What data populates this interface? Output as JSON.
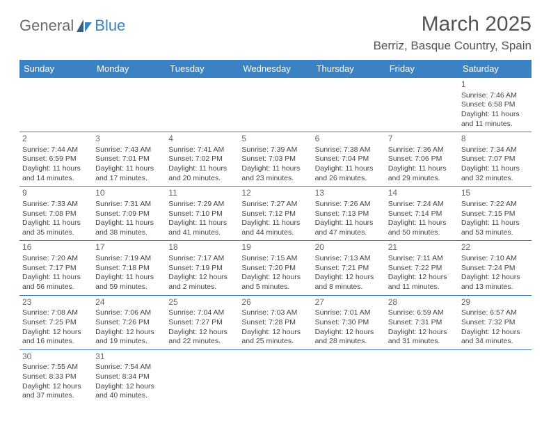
{
  "logo": {
    "part1": "General",
    "part2": "Blue"
  },
  "title": "March 2025",
  "location": "Berriz, Basque Country, Spain",
  "headers": [
    "Sunday",
    "Monday",
    "Tuesday",
    "Wednesday",
    "Thursday",
    "Friday",
    "Saturday"
  ],
  "colors": {
    "header_bg": "#3b82c4",
    "header_text": "#ffffff",
    "border": "#3b82c4",
    "text": "#444444",
    "title_text": "#555555",
    "logo_gray": "#6b6b6b",
    "logo_blue": "#3b82c4"
  },
  "first_weekday": 6,
  "days": [
    {
      "n": 1,
      "sunrise": "7:46 AM",
      "sunset": "6:58 PM",
      "daylight": "11 hours and 11 minutes."
    },
    {
      "n": 2,
      "sunrise": "7:44 AM",
      "sunset": "6:59 PM",
      "daylight": "11 hours and 14 minutes."
    },
    {
      "n": 3,
      "sunrise": "7:43 AM",
      "sunset": "7:01 PM",
      "daylight": "11 hours and 17 minutes."
    },
    {
      "n": 4,
      "sunrise": "7:41 AM",
      "sunset": "7:02 PM",
      "daylight": "11 hours and 20 minutes."
    },
    {
      "n": 5,
      "sunrise": "7:39 AM",
      "sunset": "7:03 PM",
      "daylight": "11 hours and 23 minutes."
    },
    {
      "n": 6,
      "sunrise": "7:38 AM",
      "sunset": "7:04 PM",
      "daylight": "11 hours and 26 minutes."
    },
    {
      "n": 7,
      "sunrise": "7:36 AM",
      "sunset": "7:06 PM",
      "daylight": "11 hours and 29 minutes."
    },
    {
      "n": 8,
      "sunrise": "7:34 AM",
      "sunset": "7:07 PM",
      "daylight": "11 hours and 32 minutes."
    },
    {
      "n": 9,
      "sunrise": "7:33 AM",
      "sunset": "7:08 PM",
      "daylight": "11 hours and 35 minutes."
    },
    {
      "n": 10,
      "sunrise": "7:31 AM",
      "sunset": "7:09 PM",
      "daylight": "11 hours and 38 minutes."
    },
    {
      "n": 11,
      "sunrise": "7:29 AM",
      "sunset": "7:10 PM",
      "daylight": "11 hours and 41 minutes."
    },
    {
      "n": 12,
      "sunrise": "7:27 AM",
      "sunset": "7:12 PM",
      "daylight": "11 hours and 44 minutes."
    },
    {
      "n": 13,
      "sunrise": "7:26 AM",
      "sunset": "7:13 PM",
      "daylight": "11 hours and 47 minutes."
    },
    {
      "n": 14,
      "sunrise": "7:24 AM",
      "sunset": "7:14 PM",
      "daylight": "11 hours and 50 minutes."
    },
    {
      "n": 15,
      "sunrise": "7:22 AM",
      "sunset": "7:15 PM",
      "daylight": "11 hours and 53 minutes."
    },
    {
      "n": 16,
      "sunrise": "7:20 AM",
      "sunset": "7:17 PM",
      "daylight": "11 hours and 56 minutes."
    },
    {
      "n": 17,
      "sunrise": "7:19 AM",
      "sunset": "7:18 PM",
      "daylight": "11 hours and 59 minutes."
    },
    {
      "n": 18,
      "sunrise": "7:17 AM",
      "sunset": "7:19 PM",
      "daylight": "12 hours and 2 minutes."
    },
    {
      "n": 19,
      "sunrise": "7:15 AM",
      "sunset": "7:20 PM",
      "daylight": "12 hours and 5 minutes."
    },
    {
      "n": 20,
      "sunrise": "7:13 AM",
      "sunset": "7:21 PM",
      "daylight": "12 hours and 8 minutes."
    },
    {
      "n": 21,
      "sunrise": "7:11 AM",
      "sunset": "7:22 PM",
      "daylight": "12 hours and 11 minutes."
    },
    {
      "n": 22,
      "sunrise": "7:10 AM",
      "sunset": "7:24 PM",
      "daylight": "12 hours and 13 minutes."
    },
    {
      "n": 23,
      "sunrise": "7:08 AM",
      "sunset": "7:25 PM",
      "daylight": "12 hours and 16 minutes."
    },
    {
      "n": 24,
      "sunrise": "7:06 AM",
      "sunset": "7:26 PM",
      "daylight": "12 hours and 19 minutes."
    },
    {
      "n": 25,
      "sunrise": "7:04 AM",
      "sunset": "7:27 PM",
      "daylight": "12 hours and 22 minutes."
    },
    {
      "n": 26,
      "sunrise": "7:03 AM",
      "sunset": "7:28 PM",
      "daylight": "12 hours and 25 minutes."
    },
    {
      "n": 27,
      "sunrise": "7:01 AM",
      "sunset": "7:30 PM",
      "daylight": "12 hours and 28 minutes."
    },
    {
      "n": 28,
      "sunrise": "6:59 AM",
      "sunset": "7:31 PM",
      "daylight": "12 hours and 31 minutes."
    },
    {
      "n": 29,
      "sunrise": "6:57 AM",
      "sunset": "7:32 PM",
      "daylight": "12 hours and 34 minutes."
    },
    {
      "n": 30,
      "sunrise": "7:55 AM",
      "sunset": "8:33 PM",
      "daylight": "12 hours and 37 minutes."
    },
    {
      "n": 31,
      "sunrise": "7:54 AM",
      "sunset": "8:34 PM",
      "daylight": "12 hours and 40 minutes."
    }
  ]
}
